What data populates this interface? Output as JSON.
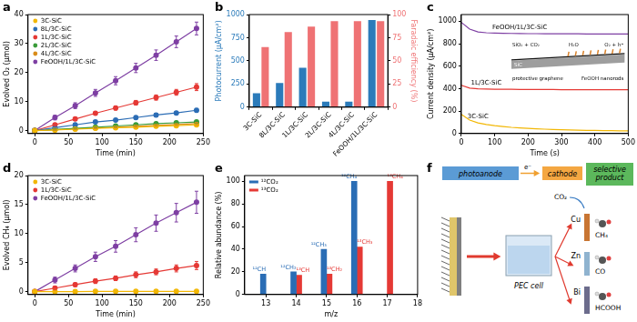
{
  "chart_data": [
    {
      "panel": "a",
      "type": "line",
      "x_label": "Time (min)",
      "y_label": "Evolved O₂ (μmol)",
      "x": [
        0,
        30,
        60,
        90,
        120,
        150,
        180,
        210,
        240
      ],
      "xlim": [
        -10,
        250
      ],
      "xticks": [
        0,
        50,
        100,
        150,
        200,
        250
      ],
      "ylim": [
        -1,
        40
      ],
      "yticks": [
        0,
        10,
        20,
        30,
        40
      ],
      "grid": false,
      "legend": "upper left",
      "marker": "circle",
      "series": [
        {
          "name": "3C-SiC",
          "color": "#f2b705",
          "values": [
            0,
            0.2,
            0.5,
            0.8,
            1.0,
            1.2,
            1.5,
            1.7,
            2.0
          ],
          "errors": [
            0,
            0.2,
            0.2,
            0.2,
            0.3,
            0.3,
            0.3,
            0.3,
            0.4
          ]
        },
        {
          "name": "8L/3C-SiC",
          "color": "#2c6db5",
          "values": [
            0,
            1,
            2,
            3,
            3.6,
            4.5,
            5.4,
            6.1,
            7.0
          ],
          "errors": [
            0,
            0.3,
            0.3,
            0.4,
            0.4,
            0.5,
            0.5,
            0.5,
            0.6
          ]
        },
        {
          "name": "1L/3C-SiC",
          "color": "#e53935",
          "values": [
            0,
            2,
            4,
            6,
            7.8,
            9.6,
            11.4,
            13.2,
            15.0
          ],
          "errors": [
            0,
            0.4,
            0.5,
            0.6,
            0.7,
            0.8,
            0.9,
            1.0,
            1.2
          ]
        },
        {
          "name": "2L/3C-SiC",
          "color": "#3a9b3a",
          "values": [
            0,
            0.4,
            0.8,
            1.2,
            1.6,
            2.0,
            2.4,
            2.7,
            3.0
          ],
          "errors": [
            0,
            0.2,
            0.2,
            0.2,
            0.3,
            0.3,
            0.3,
            0.3,
            0.4
          ]
        },
        {
          "name": "4L/3C-SiC",
          "color": "#d98c1a",
          "values": [
            0,
            0.3,
            0.6,
            0.9,
            1.2,
            1.5,
            1.8,
            2.1,
            2.4
          ],
          "errors": [
            0,
            0.2,
            0.2,
            0.2,
            0.3,
            0.3,
            0.3,
            0.3,
            0.4
          ]
        },
        {
          "name": "FeOOH/1L/3C-SiC",
          "color": "#7e3fa3",
          "values": [
            0,
            4.5,
            8.6,
            13,
            17.2,
            21.6,
            26,
            30.6,
            35.2
          ],
          "errors": [
            0,
            0.8,
            1.0,
            1.2,
            1.4,
            1.6,
            1.8,
            2.0,
            2.2
          ]
        }
      ]
    },
    {
      "panel": "b",
      "type": "bar",
      "y_label": "Photocurrent (μA/cm²)",
      "y2_label": "Faradaic efficiency (%)",
      "categories": [
        "3C-SiC",
        "8L/3C-SiC",
        "1L/3C-SiC",
        "2L/3C-SiC",
        "4L/3C-SiC",
        "FeOOH/1L/3C-SiC"
      ],
      "ylim": [
        0,
        1000
      ],
      "yticks": [
        0,
        250,
        500,
        750,
        1000
      ],
      "y2lim": [
        0,
        100
      ],
      "y2ticks": [
        0,
        25,
        50,
        75,
        100
      ],
      "grid": false,
      "series": [
        {
          "color": "#2b7bba",
          "values": [
            150,
            260,
            425,
            60,
            60,
            940
          ]
        },
        {
          "color": "#ef7274",
          "values": [
            65,
            81,
            87,
            93,
            93,
            93
          ],
          "axis": "y2"
        }
      ]
    },
    {
      "panel": "c",
      "type": "line",
      "x_label": "Time (s)",
      "y_label": "Current density (μA/cm²)",
      "x": [
        0,
        25,
        50,
        75,
        100,
        125,
        150,
        175,
        200,
        225,
        250,
        275,
        300,
        325,
        350,
        375,
        400,
        425,
        450,
        475,
        500
      ],
      "xlim": [
        0,
        500
      ],
      "xticks": [
        0,
        100,
        200,
        300,
        400,
        500
      ],
      "ylim": [
        0,
        1060
      ],
      "yticks": [
        0,
        200,
        400,
        600,
        800,
        1000
      ],
      "grid": false,
      "legend": "inline",
      "marker": "none",
      "series": [
        {
          "name": "FeOOH/1L/3C-SiC",
          "color": "#7e3fa3",
          "values": [
            990,
            930,
            905,
            898,
            895,
            893,
            892,
            891,
            890,
            890,
            889,
            889,
            888,
            888,
            888,
            887,
            887,
            887,
            886,
            886,
            886
          ]
        },
        {
          "name": "1L/3C-SiC",
          "color": "#e53935",
          "values": [
            430,
            405,
            398,
            396,
            395,
            394,
            394,
            393,
            393,
            392,
            392,
            392,
            391,
            391,
            391,
            390,
            390,
            390,
            390,
            390,
            390
          ]
        },
        {
          "name": "3C-SiC",
          "color": "#f2b705",
          "values": [
            170,
            120,
            95,
            80,
            70,
            62,
            55,
            50,
            46,
            42,
            39,
            36,
            34,
            32,
            30,
            28,
            27,
            26,
            25,
            24,
            23
          ]
        }
      ],
      "inset": [
        "SiO₂ + CO₂",
        "H₂O",
        "O₂ + h⁺",
        "SiC",
        "protective graphene",
        "FeOOH nanorods"
      ]
    },
    {
      "panel": "d",
      "type": "line",
      "x_label": "Time (min)",
      "y_label": "Evolved CH₄ (μmol)",
      "x": [
        0,
        30,
        60,
        90,
        120,
        150,
        180,
        210,
        240
      ],
      "xlim": [
        -10,
        250
      ],
      "xticks": [
        0,
        50,
        100,
        150,
        200,
        250
      ],
      "ylim": [
        -0.5,
        20
      ],
      "yticks": [
        0,
        5,
        10,
        15,
        20
      ],
      "grid": false,
      "legend": "upper left",
      "marker": "circle",
      "series": [
        {
          "name": "3C-SiC",
          "color": "#f2b705",
          "values": [
            0,
            0,
            0,
            0.05,
            0.05,
            0.05,
            0.05,
            0.05,
            0.05
          ],
          "errors": [
            0,
            0.05,
            0.05,
            0.05,
            0.05,
            0.05,
            0.05,
            0.05,
            0.05
          ]
        },
        {
          "name": "1L/3C-SiC",
          "color": "#e53935",
          "values": [
            0,
            0.6,
            1.2,
            1.8,
            2.3,
            2.9,
            3.4,
            4.0,
            4.5
          ],
          "errors": [
            0,
            0.3,
            0.3,
            0.4,
            0.4,
            0.5,
            0.5,
            0.6,
            0.7
          ]
        },
        {
          "name": "FeOOH/1L/3C-SiC",
          "color": "#7e3fa3",
          "values": [
            0,
            2,
            4,
            6,
            7.8,
            9.8,
            11.8,
            13.6,
            15.4
          ],
          "errors": [
            0,
            0.5,
            0.6,
            0.8,
            1.0,
            1.2,
            1.4,
            1.6,
            1.9
          ]
        }
      ]
    },
    {
      "panel": "e",
      "type": "bar",
      "x_label": "m/z",
      "y_label": "Relative abundance (%)",
      "xlim": [
        12.3,
        18
      ],
      "xticks": [
        13,
        14,
        15,
        16,
        17,
        18
      ],
      "ylim": [
        0,
        105
      ],
      "yticks": [
        0,
        20,
        40,
        60,
        80,
        100
      ],
      "grid": false,
      "legend": "upper left",
      "series": [
        {
          "name": "¹²CO₂",
          "color": "#2a6db5",
          "x": [
            13,
            14,
            15,
            16
          ],
          "values": [
            18,
            20,
            40,
            100
          ],
          "point_labels": [
            "¹²CH",
            "¹²CH₂",
            "¹²CH₃",
            "¹²CH₄"
          ]
        },
        {
          "name": "¹³CO₂",
          "color": "#e53935",
          "x": [
            14,
            15,
            16,
            17
          ],
          "values": [
            17,
            18,
            42,
            100
          ],
          "point_labels": [
            "¹³CH",
            "¹³CH₂",
            "¹³CH₃",
            "¹³CH₄"
          ]
        }
      ]
    }
  ],
  "diagram": {
    "panel": "f",
    "flow": [
      {
        "label": "photoanode",
        "color": "#5b9bd5"
      },
      {
        "label": "cathode",
        "color": "#f4a742"
      },
      {
        "label": "selective product",
        "color": "#5cb85c"
      }
    ],
    "electron": "e⁻",
    "gas": "CO₂",
    "cell": "PEC cell",
    "cathodes": [
      {
        "metal": "Cu",
        "product": "CH₄"
      },
      {
        "metal": "Zn",
        "product": "CO"
      },
      {
        "metal": "Bi",
        "product": "HCOOH"
      }
    ]
  }
}
